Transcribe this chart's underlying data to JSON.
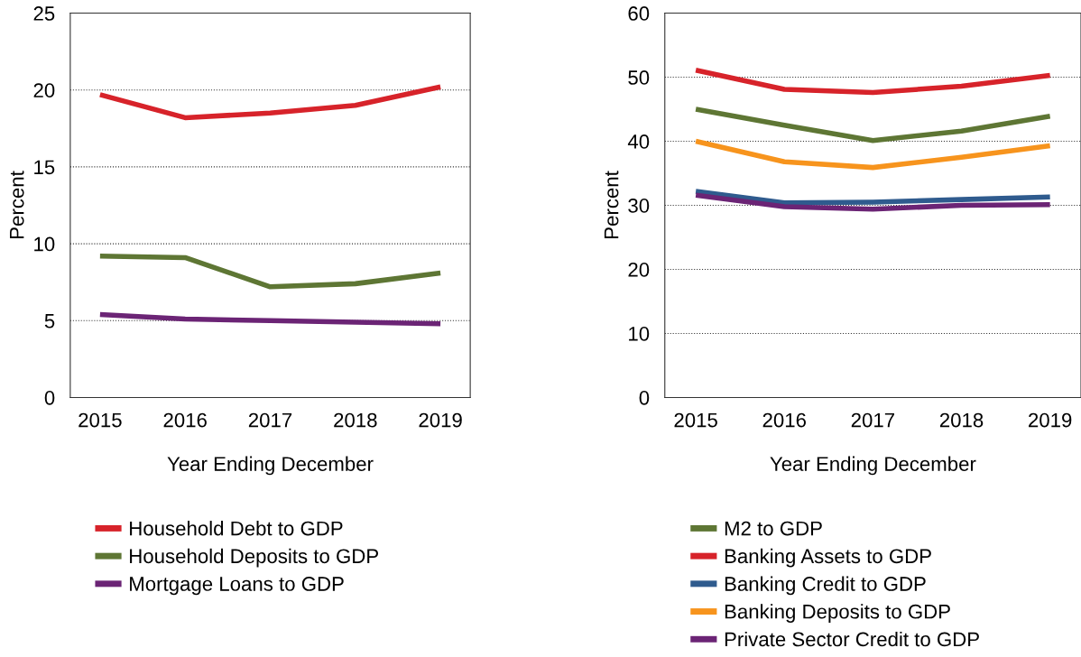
{
  "chart_data": [
    {
      "type": "line",
      "xlabel": "Year Ending December",
      "ylabel": "Percent",
      "categories": [
        "2015",
        "2016",
        "2017",
        "2018",
        "2019"
      ],
      "ylim": [
        0,
        25
      ],
      "yticks": [
        0,
        5,
        10,
        15,
        20,
        25
      ],
      "grid": "y",
      "legend": "bottom",
      "series": [
        {
          "name": "Household Debt to GDP",
          "color": "#d7232a",
          "values": [
            19.7,
            18.2,
            18.5,
            19.0,
            20.2
          ]
        },
        {
          "name": "Household Deposits to GDP",
          "color": "#5e7634",
          "values": [
            9.2,
            9.1,
            7.2,
            7.4,
            8.1
          ]
        },
        {
          "name": "Mortgage Loans to GDP",
          "color": "#6b2475",
          "values": [
            5.4,
            5.1,
            5.0,
            4.9,
            4.8
          ]
        }
      ]
    },
    {
      "type": "line",
      "xlabel": "Year Ending December",
      "ylabel": "Percent",
      "categories": [
        "2015",
        "2016",
        "2017",
        "2018",
        "2019"
      ],
      "ylim": [
        0,
        60
      ],
      "yticks": [
        0,
        10,
        20,
        30,
        40,
        50,
        60
      ],
      "grid": "y",
      "legend": "bottom",
      "series": [
        {
          "name": "M2 to GDP",
          "color": "#5e7634",
          "values": [
            45.0,
            42.5,
            40.1,
            41.6,
            43.9
          ]
        },
        {
          "name": "Banking Assets to GDP",
          "color": "#d7232a",
          "values": [
            51.1,
            48.1,
            47.6,
            48.6,
            50.3
          ]
        },
        {
          "name": "Banking Credit to GDP",
          "color": "#2f5b8e",
          "values": [
            32.2,
            30.4,
            30.5,
            30.9,
            31.3
          ]
        },
        {
          "name": "Banking Deposits to GDP",
          "color": "#f7941d",
          "values": [
            40.0,
            36.8,
            35.9,
            37.5,
            39.3
          ]
        },
        {
          "name": "Private Sector Credit to GDP",
          "color": "#6b2475",
          "values": [
            31.6,
            29.8,
            29.4,
            30.0,
            30.1
          ]
        }
      ]
    }
  ]
}
